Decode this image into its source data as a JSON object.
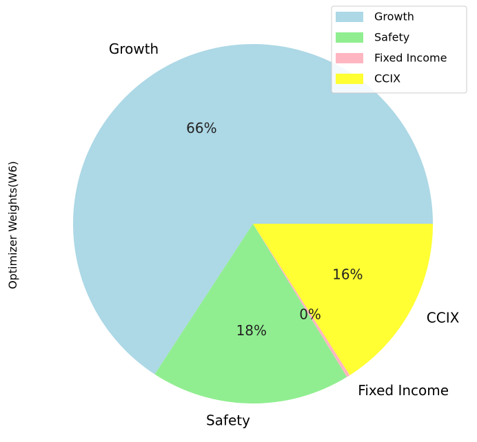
{
  "chart_data": {
    "type": "pie",
    "ylabel": "Optimizer Weights(W6)",
    "start_angle_deg": 0,
    "direction": "counterclockwise",
    "legend_position": "top-right",
    "slices": [
      {
        "label": "Growth",
        "value": 66,
        "pct_label": "66%",
        "color": "#ADD8E6"
      },
      {
        "label": "Safety",
        "value": 18,
        "pct_label": "18%",
        "color": "#90EE90"
      },
      {
        "label": "Fixed Income",
        "value": 0.3,
        "pct_label": "0%",
        "color": "#FFB6C1"
      },
      {
        "label": "CCIX",
        "value": 16,
        "pct_label": "16%",
        "color": "#FFFF33"
      }
    ]
  }
}
